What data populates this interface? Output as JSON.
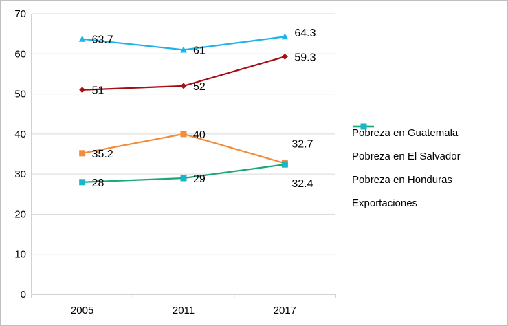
{
  "chart_data": {
    "type": "line",
    "categories": [
      "2005",
      "2011",
      "2017"
    ],
    "ylim": [
      0,
      70
    ],
    "yticks": [
      0,
      10,
      20,
      30,
      40,
      50,
      60,
      70
    ],
    "grid": true,
    "legend_position": "right",
    "series": [
      {
        "name": "Pobreza en Guatemala",
        "values": [
          51,
          52,
          59.3
        ],
        "labels": [
          "51",
          "52",
          "59.3"
        ],
        "color": "#a50f15",
        "marker": "diamond"
      },
      {
        "name": "Pobreza en El Salvador",
        "values": [
          35.2,
          40,
          32.7
        ],
        "labels": [
          "35.2",
          "40",
          "32.7"
        ],
        "color": "#f28c3a",
        "marker": "square"
      },
      {
        "name": "Pobreza en Honduras",
        "values": [
          63.7,
          61,
          64.3
        ],
        "labels": [
          "63.7",
          "61",
          "64.3"
        ],
        "color": "#1fb4e9",
        "marker": "triangle"
      },
      {
        "name": "Exportaciones",
        "values": [
          28,
          29,
          32.4
        ],
        "labels": [
          "28",
          "29",
          "32.4"
        ],
        "color": "#1aa878",
        "marker": "square",
        "marker_color": "#1ab5c8"
      }
    ]
  }
}
